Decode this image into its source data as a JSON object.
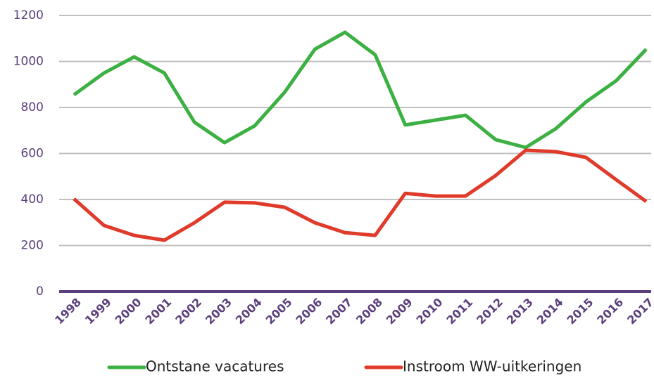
{
  "chart_data": {
    "type": "line",
    "categories": [
      "1998",
      "1999",
      "2000",
      "2001",
      "2002",
      "2003",
      "2004",
      "2005",
      "2006",
      "2007",
      "2008",
      "2009",
      "2010",
      "2011",
      "2012",
      "2013",
      "2014",
      "2015",
      "2016",
      "2017"
    ],
    "series": [
      {
        "name": "Ontstane vacatures",
        "color": "#3cb043",
        "values": [
          855,
          950,
          1020,
          950,
          736,
          647,
          720,
          867,
          1053,
          1127,
          1029,
          724,
          745,
          766,
          660,
          626,
          708,
          824,
          916,
          1053
        ]
      },
      {
        "name": "Instroom WW-uitkeringen",
        "color": "#e03a2a",
        "values": [
          403,
          287,
          244,
          223,
          299,
          388,
          385,
          366,
          299,
          256,
          244,
          427,
          415,
          415,
          504,
          614,
          608,
          583,
          486,
          391
        ]
      }
    ],
    "ylim": [
      0,
      1200
    ],
    "yticks": [
      0,
      200,
      400,
      600,
      800,
      1000,
      1200
    ],
    "grid": true,
    "legend": "bottom"
  }
}
